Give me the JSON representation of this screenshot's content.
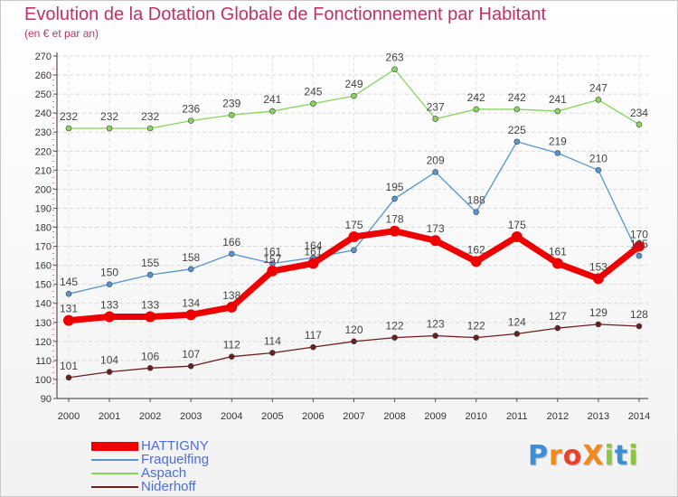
{
  "title": "Evolution de la Dotation Globale de Fonctionnement par Habitant",
  "subtitle": "(en € et par an)",
  "logo": {
    "text": "ProXiti",
    "colors": [
      "#3b8fd8",
      "#f08a1c",
      "#e8412c",
      "#f08a1c",
      "#8cc63f",
      "#3b8fd8",
      "#8cc63f"
    ]
  },
  "chart_data": {
    "type": "line",
    "x": [
      "2000",
      "2001",
      "2002",
      "2003",
      "2004",
      "2005",
      "2006",
      "2007",
      "2008",
      "2009",
      "2010",
      "2011",
      "2012",
      "2013",
      "2014"
    ],
    "ylim": [
      90,
      270
    ],
    "yticks": [
      90,
      100,
      110,
      120,
      130,
      140,
      150,
      160,
      170,
      180,
      190,
      200,
      210,
      220,
      230,
      240,
      250,
      260,
      270
    ],
    "grid": true,
    "legend_position": "bottom-left",
    "series": [
      {
        "name": "HATTIGNY",
        "color": "#ee0000",
        "emphasis": true,
        "values": [
          131,
          133,
          133,
          134,
          138,
          157,
          161,
          175,
          178,
          173,
          162,
          175,
          161,
          153,
          170
        ]
      },
      {
        "name": "Fraquelfing",
        "color": "#5596cf",
        "values": [
          145,
          150,
          155,
          158,
          166,
          161,
          164,
          168,
          195,
          209,
          188,
          225,
          219,
          210,
          165
        ]
      },
      {
        "name": "Aspach",
        "color": "#88d45c",
        "values": [
          232,
          232,
          232,
          236,
          239,
          241,
          245,
          249,
          263,
          237,
          242,
          242,
          241,
          247,
          234
        ]
      },
      {
        "name": "Niderhoff",
        "color": "#6b1e1e",
        "values": [
          101,
          104,
          106,
          107,
          112,
          114,
          117,
          120,
          122,
          123,
          122,
          124,
          127,
          129,
          128
        ]
      }
    ],
    "data_labels": [
      {
        "series": "Fraquelfing",
        "values": [
          145,
          150,
          155,
          158,
          166,
          161,
          164,
          null,
          195,
          209,
          188,
          225,
          219,
          210,
          165
        ]
      },
      {
        "series": "Aspach",
        "values": [
          232,
          232,
          232,
          236,
          239,
          241,
          245,
          249,
          263,
          237,
          242,
          242,
          241,
          247,
          234
        ]
      },
      {
        "series": "Niderhoff",
        "values": [
          101,
          104,
          106,
          107,
          112,
          114,
          117,
          120,
          122,
          123,
          122,
          124,
          127,
          129,
          128
        ]
      },
      {
        "series": "HATTIGNY",
        "values": [
          131,
          133,
          133,
          134,
          138,
          157,
          161,
          175,
          178,
          173,
          162,
          175,
          161,
          153,
          170
        ]
      }
    ]
  }
}
